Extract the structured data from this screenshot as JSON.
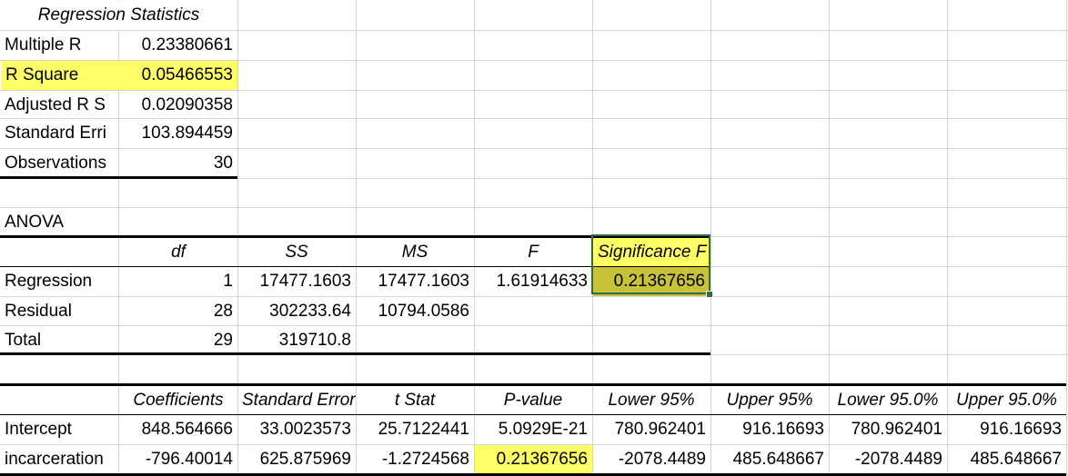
{
  "regression_statistics": {
    "title": "Regression Statistics",
    "rows": [
      {
        "label": "Multiple R",
        "value": "0.23380661"
      },
      {
        "label": "R Square",
        "value": "0.05466553"
      },
      {
        "label": "Adjusted R S",
        "value": "0.02090358"
      },
      {
        "label": "Standard Erri",
        "value": "103.894459"
      },
      {
        "label": "Observations",
        "value": "30"
      }
    ]
  },
  "anova": {
    "title": "ANOVA",
    "headers": [
      "",
      "df",
      "SS",
      "MS",
      "F",
      "Significance F"
    ],
    "rows": [
      {
        "label": "Regression",
        "df": "1",
        "ss": "17477.1603",
        "ms": "17477.1603",
        "f": "1.61914633",
        "sig": "0.21367656"
      },
      {
        "label": "Residual",
        "df": "28",
        "ss": "302233.64",
        "ms": "10794.0586",
        "f": "",
        "sig": ""
      },
      {
        "label": "Total",
        "df": "29",
        "ss": "319710.8",
        "ms": "",
        "f": "",
        "sig": ""
      }
    ]
  },
  "coefficients": {
    "headers": [
      "Coefficients",
      "Standard Error",
      "t Stat",
      "P-value",
      "Lower 95%",
      "Upper 95%",
      "Lower 95.0%",
      "Upper 95.0%"
    ],
    "rows": [
      {
        "label": "Intercept",
        "values": [
          "848.564666",
          "33.0023573",
          "25.7122441",
          "5.0929E-21",
          "780.962401",
          "916.16693",
          "780.962401",
          "916.16693"
        ]
      },
      {
        "label": "incarceration",
        "values": [
          "-796.40014",
          "625.875969",
          "-1.2724568",
          "0.21367656",
          "-2078.4489",
          "485.648667",
          "-2078.4489",
          "485.648667"
        ]
      }
    ]
  },
  "highlight_colors": {
    "yellow": "#ffff66",
    "selected": "#c7c238",
    "selection_border": "#2e6b46"
  }
}
